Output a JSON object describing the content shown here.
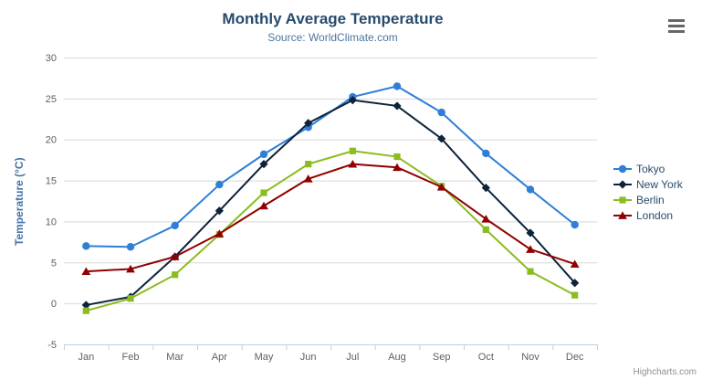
{
  "chart_data": {
    "type": "line",
    "title": "Monthly Average Temperature",
    "subtitle": "Source: WorldClimate.com",
    "categories": [
      "Jan",
      "Feb",
      "Mar",
      "Apr",
      "May",
      "Jun",
      "Jul",
      "Aug",
      "Sep",
      "Oct",
      "Nov",
      "Dec"
    ],
    "series": [
      {
        "name": "Tokyo",
        "color": "#2f7ed8",
        "marker": "circle",
        "values": [
          7.0,
          6.9,
          9.5,
          14.5,
          18.2,
          21.5,
          25.2,
          26.5,
          23.3,
          18.3,
          13.9,
          9.6
        ]
      },
      {
        "name": "New York",
        "color": "#0d233a",
        "marker": "diamond",
        "values": [
          -0.2,
          0.8,
          5.7,
          11.3,
          17.0,
          22.0,
          24.8,
          24.1,
          20.1,
          14.1,
          8.6,
          2.5
        ]
      },
      {
        "name": "Berlin",
        "color": "#8bbc21",
        "marker": "square",
        "values": [
          -0.9,
          0.6,
          3.5,
          8.4,
          13.5,
          17.0,
          18.6,
          17.9,
          14.3,
          9.0,
          3.9,
          1.0
        ]
      },
      {
        "name": "London",
        "color": "#910000",
        "marker": "triangle",
        "values": [
          3.9,
          4.2,
          5.7,
          8.5,
          11.9,
          15.2,
          17.0,
          16.6,
          14.2,
          10.3,
          6.6,
          4.8
        ]
      }
    ],
    "xlabel": "",
    "ylabel": "Temperature (°C)",
    "ylim": [
      -5,
      30
    ],
    "ytick_step": 5,
    "yticks": [
      -5,
      0,
      5,
      10,
      15,
      20,
      25,
      30
    ],
    "grid": true,
    "legend_position": "right"
  },
  "export_menu": {
    "icon": "hamburger-menu-icon"
  },
  "credit": {
    "label": "Highcharts.com"
  },
  "colors": {
    "title": "#274b6d",
    "subtitle": "#4d759e",
    "axis_title": "#4572a7",
    "axis_labels": "#606060",
    "legend_text": "#274b6d",
    "gridline": "#d8d8d8",
    "axis_line": "#c0d0e0",
    "export_icon": "#666666",
    "credit": "#909090"
  }
}
